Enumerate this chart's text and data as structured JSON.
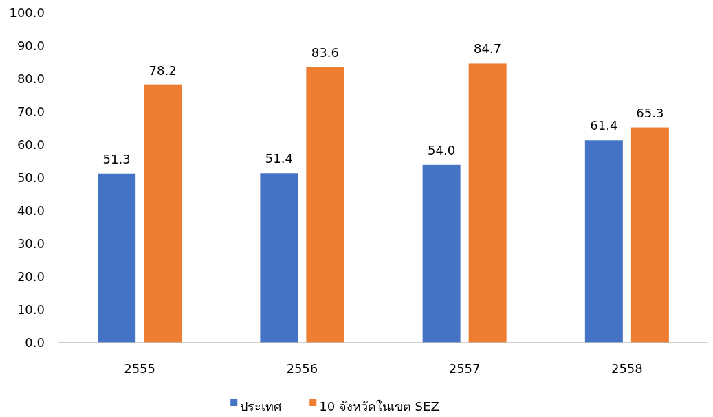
{
  "chart_data": {
    "type": "bar",
    "categories": [
      "2555",
      "2556",
      "2557",
      "2558"
    ],
    "series": [
      {
        "name": "ประเทศ",
        "color": "#4472c4",
        "values": [
          51.3,
          51.4,
          54.0,
          61.4
        ]
      },
      {
        "name": "10 จังหวัดในเขต SEZ",
        "color": "#ed7d31",
        "values": [
          78.2,
          83.6,
          84.7,
          65.3
        ]
      }
    ],
    "ylim": [
      0,
      100
    ],
    "yticks": [
      {
        "value": 0,
        "label": "0.0"
      },
      {
        "value": 10,
        "label": "10.0"
      },
      {
        "value": 20,
        "label": "20.0"
      },
      {
        "value": 30,
        "label": "30.0"
      },
      {
        "value": 40,
        "label": "40.0"
      },
      {
        "value": 50,
        "label": "50.0"
      },
      {
        "value": 60,
        "label": "60.0"
      },
      {
        "value": 70,
        "label": "70.0"
      },
      {
        "value": 80,
        "label": "80.0"
      },
      {
        "value": 90,
        "label": "90.0"
      },
      {
        "value": 100,
        "label": "100.0"
      }
    ],
    "value_labels": [
      [
        "51.3",
        "51.4",
        "54.0",
        "61.4"
      ],
      [
        "78.2",
        "83.6",
        "84.7",
        "65.3"
      ]
    ],
    "grid": false,
    "legend": "bottom"
  }
}
